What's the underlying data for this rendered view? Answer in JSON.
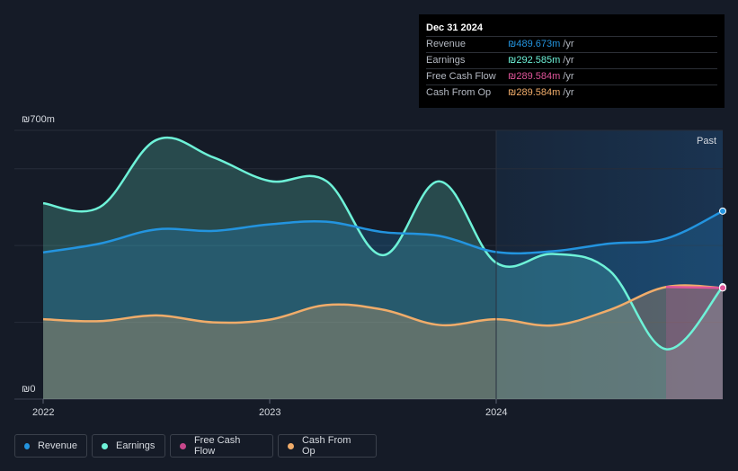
{
  "tooltip": {
    "date": "Dec 31 2024",
    "rows": [
      {
        "label": "Revenue",
        "value": "₪489.673m",
        "unit": "/yr",
        "color": "#2394df"
      },
      {
        "label": "Earnings",
        "value": "₪292.585m",
        "unit": "/yr",
        "color": "#6ef2d8"
      },
      {
        "label": "Free Cash Flow",
        "value": "₪289.584m",
        "unit": "/yr",
        "color": "#e0559a"
      },
      {
        "label": "Cash From Op",
        "value": "₪289.584m",
        "unit": "/yr",
        "color": "#f0ac6a"
      }
    ]
  },
  "past_label": "Past",
  "legend": [
    {
      "label": "Revenue",
      "color": "#2394df"
    },
    {
      "label": "Earnings",
      "color": "#6ef2d8"
    },
    {
      "label": "Free Cash Flow",
      "color": "#c8478c"
    },
    {
      "label": "Cash From Op",
      "color": "#f0ac6a"
    }
  ],
  "chart_data": {
    "type": "area",
    "ylim": [
      0,
      700
    ],
    "y_tick_labels": {
      "top": "₪700m",
      "bottom": "₪0"
    },
    "x_ticks": [
      {
        "label": "2022",
        "x": 2022.0
      },
      {
        "label": "2023",
        "x": 2023.0
      },
      {
        "label": "2024",
        "x": 2024.0
      }
    ],
    "x_range": [
      2022.0,
      2025.0
    ],
    "past_start": 2024.0,
    "series": [
      {
        "name": "Earnings",
        "color": "#6ef2d8",
        "fill": "#6ef2d8",
        "points": [
          [
            2022.0,
            510
          ],
          [
            2022.25,
            500
          ],
          [
            2022.5,
            675
          ],
          [
            2022.75,
            630
          ],
          [
            2023.0,
            568
          ],
          [
            2023.25,
            568
          ],
          [
            2023.5,
            375
          ],
          [
            2023.75,
            567
          ],
          [
            2024.0,
            355
          ],
          [
            2024.25,
            378
          ],
          [
            2024.5,
            335
          ],
          [
            2024.75,
            130
          ],
          [
            2025.0,
            292.585
          ]
        ]
      },
      {
        "name": "Revenue",
        "color": "#2394df",
        "fill": "#2394df",
        "points": [
          [
            2022.0,
            382
          ],
          [
            2022.25,
            405
          ],
          [
            2022.5,
            442
          ],
          [
            2022.75,
            438
          ],
          [
            2023.0,
            455
          ],
          [
            2023.25,
            462
          ],
          [
            2023.5,
            435
          ],
          [
            2023.75,
            425
          ],
          [
            2024.0,
            383
          ],
          [
            2024.25,
            385
          ],
          [
            2024.5,
            405
          ],
          [
            2024.75,
            418
          ],
          [
            2025.0,
            489.673
          ]
        ]
      },
      {
        "name": "Cash From Op",
        "color": "#f0ac6a",
        "fill": "#f0ac6a",
        "points": [
          [
            2022.0,
            208
          ],
          [
            2022.25,
            203
          ],
          [
            2022.5,
            218
          ],
          [
            2022.75,
            200
          ],
          [
            2023.0,
            207
          ],
          [
            2023.25,
            245
          ],
          [
            2023.5,
            233
          ],
          [
            2023.75,
            193
          ],
          [
            2024.0,
            208
          ],
          [
            2024.25,
            192
          ],
          [
            2024.5,
            232
          ],
          [
            2024.75,
            292
          ],
          [
            2025.0,
            289.584
          ]
        ]
      },
      {
        "name": "Free Cash Flow",
        "color": "#e0559a",
        "fill": "#e0559a",
        "points": [
          [
            2024.75,
            292
          ],
          [
            2025.0,
            289.584
          ]
        ]
      }
    ]
  }
}
